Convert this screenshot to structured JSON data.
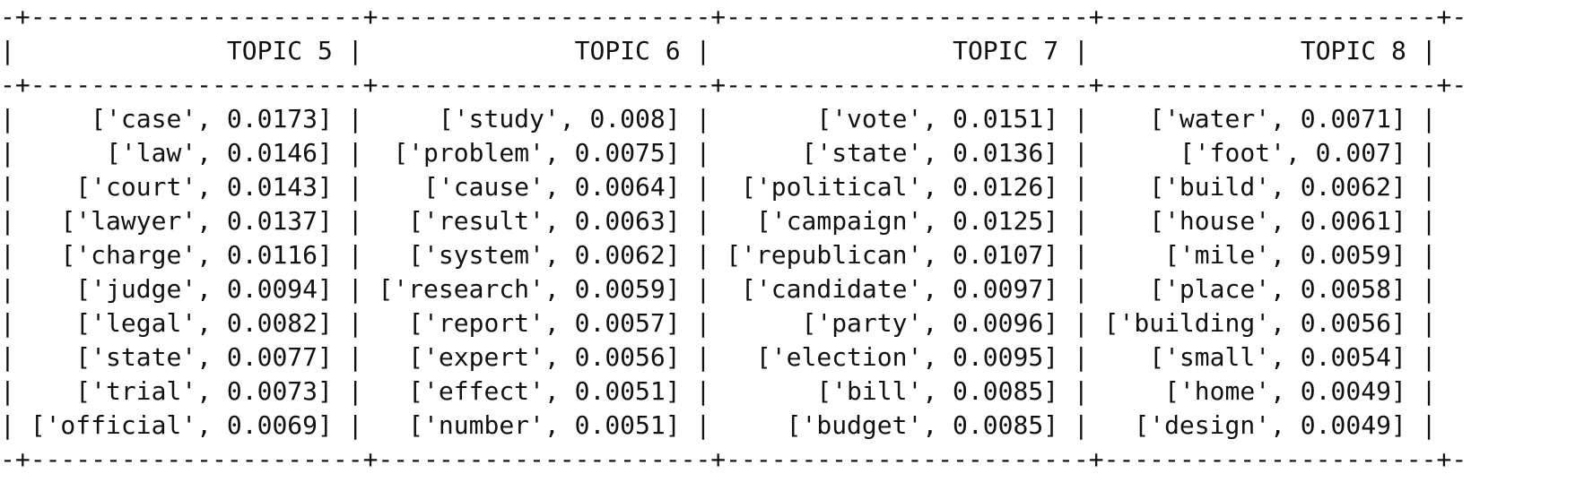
{
  "table": {
    "columns": [
      {
        "header": "TOPIC 5",
        "width": 22,
        "rows": [
          "['case', 0.0173]",
          "['law', 0.0146]",
          "['court', 0.0143]",
          "['lawyer', 0.0137]",
          "['charge', 0.0116]",
          "['judge', 0.0094]",
          "['legal', 0.0082]",
          "['state', 0.0077]",
          "['trial', 0.0073]",
          "['official', 0.0069]"
        ]
      },
      {
        "header": "TOPIC 6",
        "width": 22,
        "rows": [
          "['study', 0.008]",
          "['problem', 0.0075]",
          "['cause', 0.0064]",
          "['result', 0.0063]",
          "['system', 0.0062]",
          "['research', 0.0059]",
          "['report', 0.0057]",
          "['expert', 0.0056]",
          "['effect', 0.0051]",
          "['number', 0.0051]"
        ]
      },
      {
        "header": "TOPIC 7",
        "width": 24,
        "rows": [
          "['vote', 0.0151]",
          "['state', 0.0136]",
          "['political', 0.0126]",
          "['campaign', 0.0125]",
          "['republican', 0.0107]",
          "['candidate', 0.0097]",
          "['party', 0.0096]",
          "['election', 0.0095]",
          "['bill', 0.0085]",
          "['budget', 0.0085]"
        ]
      },
      {
        "header": "TOPIC 8",
        "width": 22,
        "rows": [
          "['water', 0.0071]",
          "['foot', 0.007]",
          "['build', 0.0062]",
          "['house', 0.0061]",
          "['mile', 0.0059]",
          "['place', 0.0058]",
          "['building', 0.0056]",
          "['small', 0.0054]",
          "['home', 0.0049]",
          "['design', 0.0049]"
        ]
      }
    ]
  }
}
